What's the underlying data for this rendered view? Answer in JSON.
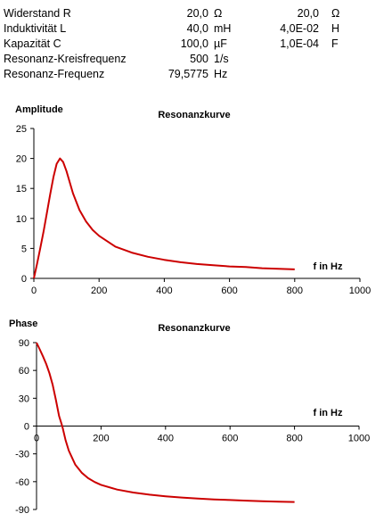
{
  "params": [
    {
      "label": "Widerstand R",
      "value": "20,0",
      "unit": "Ω",
      "value2": "20,0",
      "unit2": "Ω"
    },
    {
      "label": "Induktivität L",
      "value": "40,0",
      "unit": "mH",
      "value2": "4,0E-02",
      "unit2": "H"
    },
    {
      "label": "Kapazität C",
      "value": "100,0",
      "unit": "µF",
      "value2": "1,0E-04",
      "unit2": "F"
    },
    {
      "label": "Resonanz-Kreisfrequenz",
      "value": "500",
      "unit": "1/s",
      "value2": "",
      "unit2": ""
    },
    {
      "label": "Resonanz-Frequenz",
      "value": "79,5775",
      "unit": "Hz",
      "value2": "",
      "unit2": ""
    }
  ],
  "chart_data": [
    {
      "type": "line",
      "title": "Resonanzkurve",
      "ylabel": "Amplitude",
      "xlabel": "f in Hz",
      "xlim": [
        0,
        1000
      ],
      "ylim": [
        0,
        25
      ],
      "xticks": [
        "0",
        "200",
        "400",
        "600",
        "800",
        "1000"
      ],
      "yticks": [
        "0",
        "5",
        "10",
        "15",
        "20",
        "25"
      ],
      "series_color": "#cc0000",
      "x": [
        0,
        10,
        20,
        30,
        40,
        50,
        60,
        70,
        80,
        90,
        100,
        120,
        140,
        160,
        180,
        200,
        250,
        300,
        350,
        400,
        450,
        500,
        550,
        600,
        650,
        700,
        750,
        800
      ],
      "y": [
        0,
        2.5,
        5.1,
        7.9,
        10.9,
        14.0,
        16.9,
        19.1,
        20.0,
        19.4,
        17.9,
        14.2,
        11.4,
        9.5,
        8.1,
        7.1,
        5.3,
        4.3,
        3.6,
        3.1,
        2.7,
        2.4,
        2.2,
        2.0,
        1.9,
        1.7,
        1.6,
        1.5
      ]
    },
    {
      "type": "line",
      "title": "Resonanzkurve",
      "ylabel": "Phase",
      "xlabel": "f in Hz",
      "xlim": [
        0,
        1000
      ],
      "ylim": [
        -90,
        90
      ],
      "xticks": [
        "0",
        "200",
        "400",
        "600",
        "800",
        "1000"
      ],
      "yticks": [
        "90",
        "60",
        "30",
        "0",
        "-30",
        "-60",
        "-90"
      ],
      "series_color": "#cc0000",
      "x": [
        0,
        10,
        20,
        30,
        40,
        50,
        60,
        70,
        80,
        90,
        100,
        120,
        140,
        160,
        180,
        200,
        250,
        300,
        350,
        400,
        450,
        500,
        550,
        600,
        650,
        700,
        750,
        800
      ],
      "y": [
        90,
        82.8,
        75.3,
        66.9,
        57.0,
        44.6,
        28.4,
        10.9,
        -0.5,
        -15.2,
        -26.5,
        -41.5,
        -50.3,
        -56.2,
        -60.4,
        -63.4,
        -68.5,
        -71.7,
        -74.0,
        -75.8,
        -77.1,
        -78.2,
        -79.1,
        -79.8,
        -80.5,
        -81.0,
        -81.5,
        -81.9
      ]
    }
  ]
}
